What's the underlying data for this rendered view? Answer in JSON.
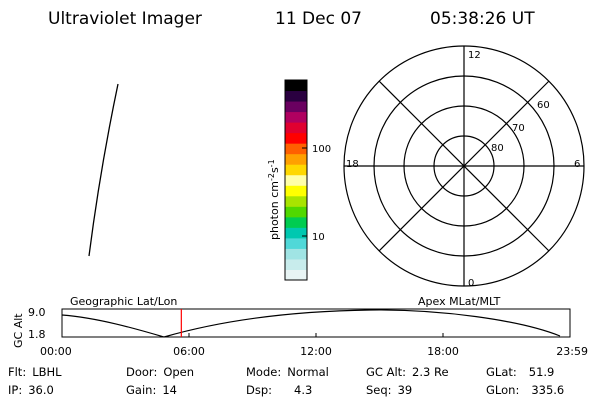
{
  "header": {
    "instrument": "Ultraviolet Imager",
    "date": "11 Dec 07",
    "time": "05:38:26 UT"
  },
  "colorbar": {
    "label": "photon cm",
    "label_sup1": "-2",
    "label_mid": "s",
    "label_sup2": "-1",
    "tick_hi": "100",
    "tick_lo": "10",
    "colors": [
      "#e8f4f4",
      "#c8ecec",
      "#a0e4e4",
      "#50d8d8",
      "#00c8b0",
      "#00cc50",
      "#50d800",
      "#a8e400",
      "#ffff00",
      "#ffffa8",
      "#ffd800",
      "#ffa000",
      "#ff6000",
      "#ff0000",
      "#e00030",
      "#b00060",
      "#6a0060",
      "#2a0040",
      "#000000"
    ]
  },
  "polar": {
    "mlt_top": "12",
    "mlt_left": "18",
    "mlt_right": "6",
    "mlt_bottom": "0",
    "lat_60": "60",
    "lat_70": "70",
    "lat_80": "80"
  },
  "orbit": {
    "title_left": "Geographic Lat/Lon",
    "title_right": "Apex MLat/MLT",
    "yaxis": "GC Alt",
    "y_max": "9.0",
    "y_min": "1.8",
    "x_ticks": [
      "00:00",
      "06:00",
      "12:00",
      "18:00",
      "23:59"
    ],
    "current_time": "05:38",
    "marker_color": "#ff0000"
  },
  "status": {
    "flt_label": "Flt:",
    "flt": "LBHL",
    "ip_label": "IP:",
    "ip": "36.0",
    "door_label": "Door:",
    "door": "Open",
    "gain_label": "Gain:",
    "gain": "14",
    "mode_label": "Mode:",
    "mode": "Normal",
    "dsp_label": "Dsp:",
    "dsp": "4.3",
    "gcalt_label": "GC Alt:",
    "gcalt": "2.3 Re",
    "seq_label": "Seq:",
    "seq": "39",
    "glat_label": "GLat:",
    "glat": "51.9",
    "glon_label": "GLon:",
    "glon": "335.6"
  }
}
